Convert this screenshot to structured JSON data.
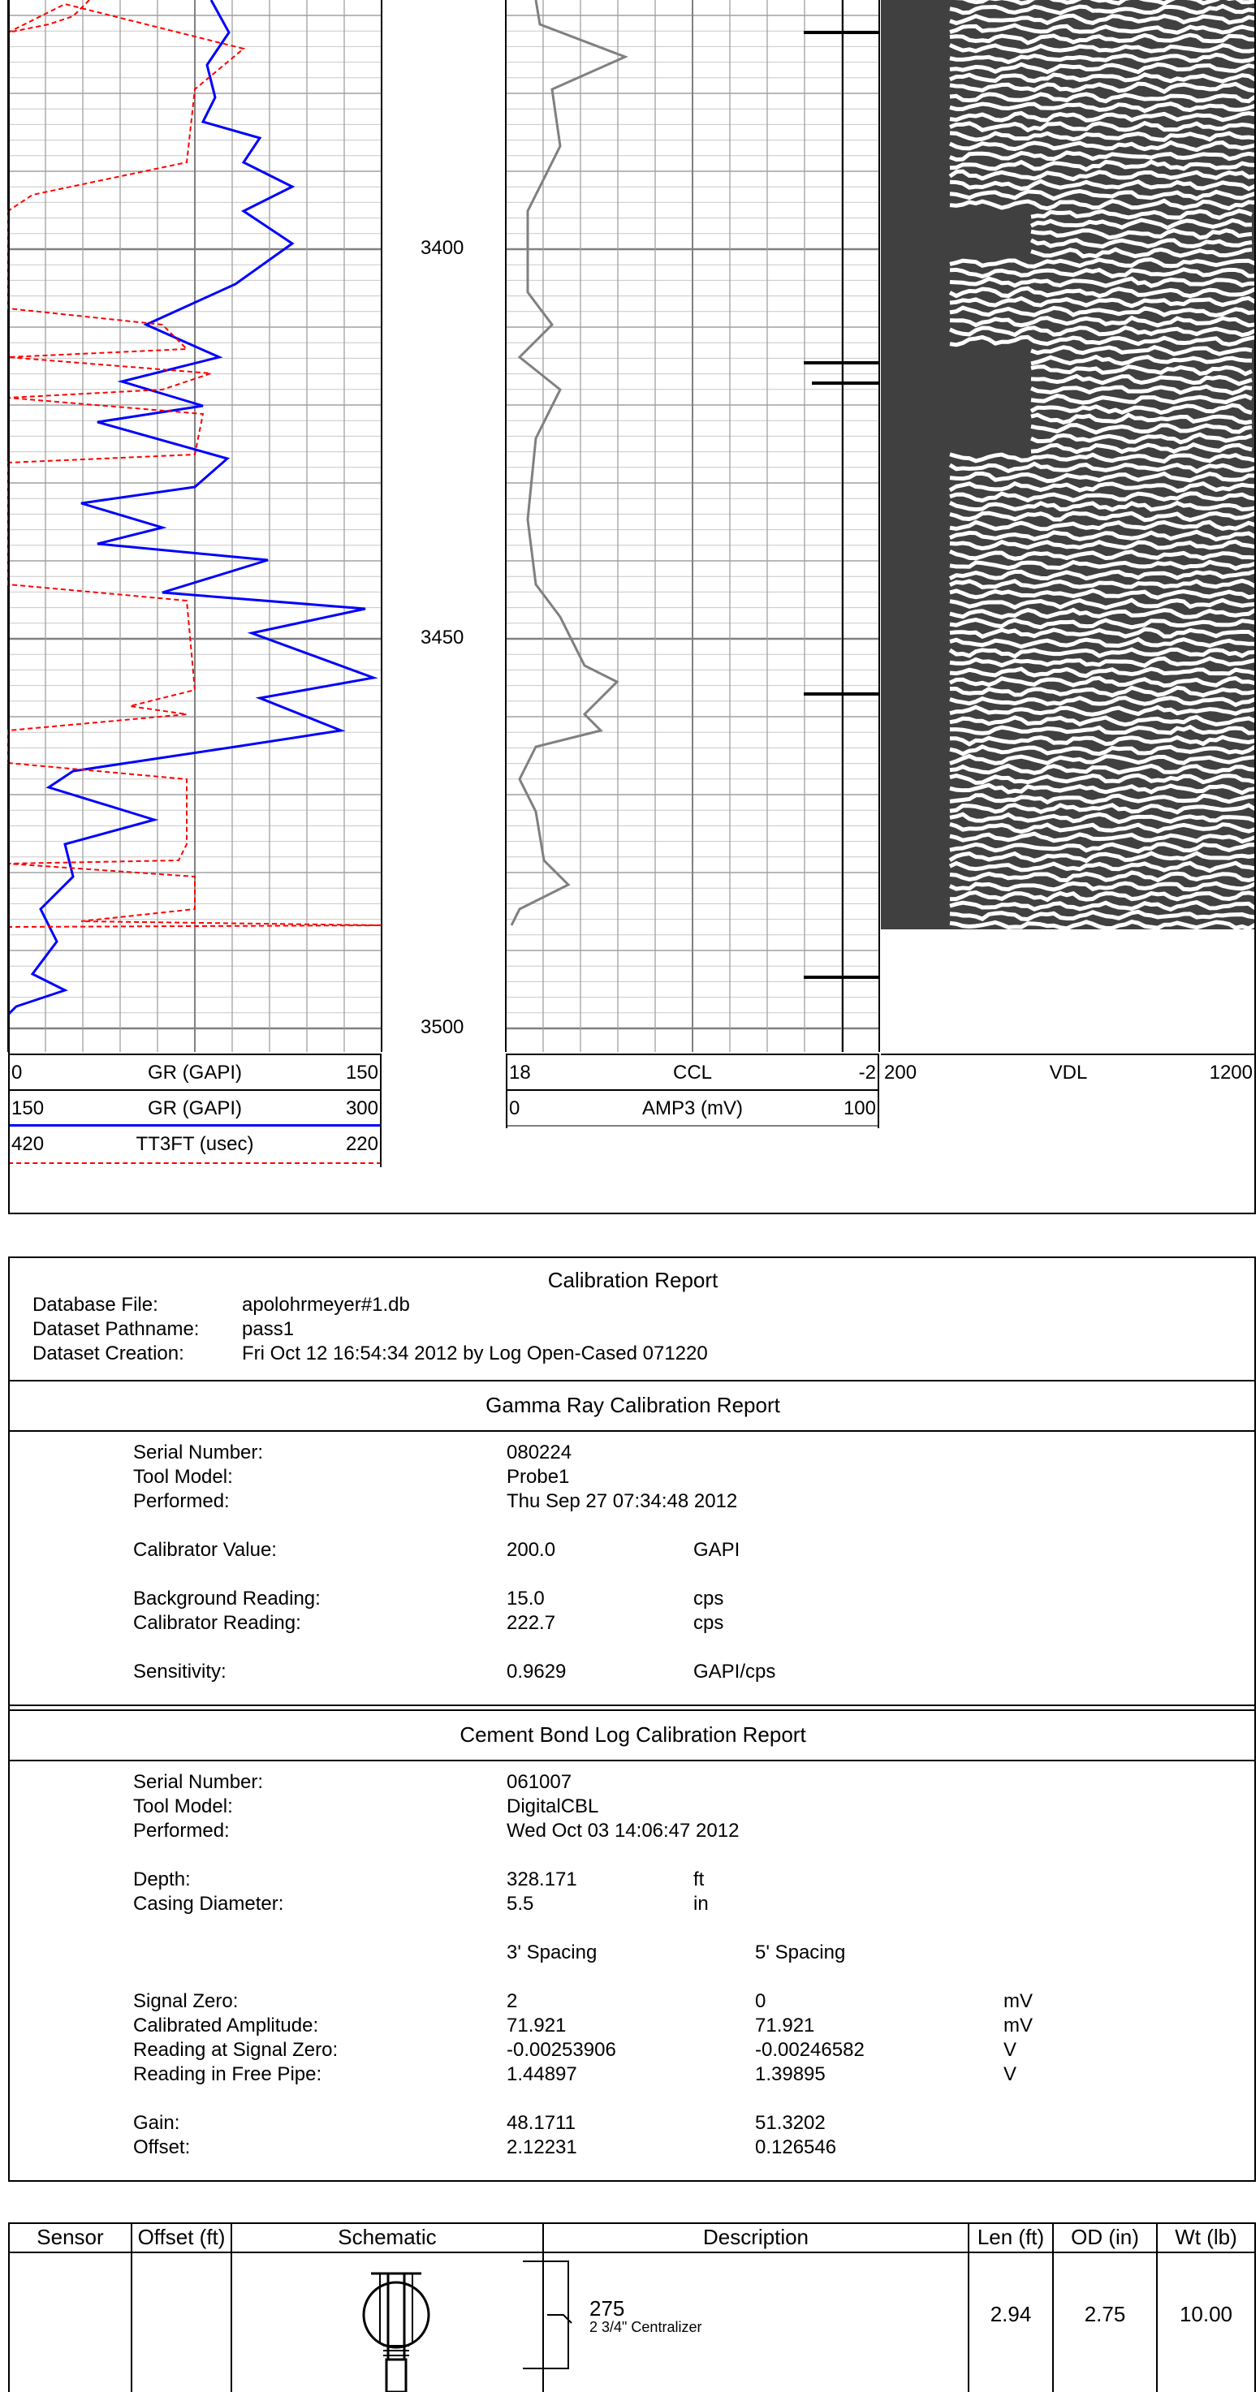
{
  "log": {
    "depth_labels": [
      "3400",
      "3450",
      "3500"
    ],
    "track1_scales": [
      {
        "left": "0",
        "name": "GR (GAPI)",
        "right": "150"
      },
      {
        "left": "150",
        "name": "GR (GAPI)",
        "right": "300"
      },
      {
        "left": "420",
        "name": "TT3FT (usec)",
        "right": "220"
      }
    ],
    "track2_scales": [
      {
        "left": "18",
        "name": "CCL",
        "right": "-2"
      },
      {
        "left": "0",
        "name": "AMP3 (mV)",
        "right": "100"
      }
    ],
    "track3_scale": {
      "left": "200",
      "name": "VDL",
      "right": "1200"
    },
    "colors": {
      "gr": "#0000ff",
      "tt": "#ff0000",
      "amp": "#808080",
      "vdl_bg": "#404040"
    }
  },
  "calibration": {
    "title": "Calibration Report",
    "database_label": "Database File:",
    "database_value": "apolohrmeyer#1.db",
    "pathname_label": "Dataset Pathname:",
    "pathname_value": "pass1",
    "creation_label": "Dataset Creation:",
    "creation_value": "Fri Oct 12 16:54:34 2012 by Log Open-Cased 071220"
  },
  "gamma": {
    "title": "Gamma Ray Calibration Report",
    "serial_label": "Serial Number:",
    "serial_value": "080224",
    "model_label": "Tool Model:",
    "model_value": "Probe1",
    "performed_label": "Performed:",
    "performed_value": "Thu Sep 27 07:34:48 2012",
    "calval_label": "Calibrator Value:",
    "calval_value": "200.0",
    "calval_unit": "GAPI",
    "bg_label": "Background Reading:",
    "bg_value": "15.0",
    "bg_unit": "cps",
    "calread_label": "Calibrator Reading:",
    "calread_value": "222.7",
    "calread_unit": "cps",
    "sens_label": "Sensitivity:",
    "sens_value": "0.9629",
    "sens_unit": "GAPI/cps"
  },
  "cbl": {
    "title": "Cement Bond Log Calibration Report",
    "serial_label": "Serial Number:",
    "serial_value": "061007",
    "model_label": "Tool Model:",
    "model_value": "DigitalCBL",
    "performed_label": "Performed:",
    "performed_value": "Wed Oct 03 14:06:47 2012",
    "depth_label": "Depth:",
    "depth_value": "328.171",
    "depth_unit": "ft",
    "casing_label": "Casing Diameter:",
    "casing_value": "5.5",
    "casing_unit": "in",
    "col3": "3' Spacing",
    "col5": "5' Spacing",
    "rows": [
      {
        "label": "Signal Zero:",
        "v3": "2",
        "v5": "0",
        "unit": "mV"
      },
      {
        "label": "Calibrated Amplitude:",
        "v3": "71.921",
        "v5": "71.921",
        "unit": "mV"
      },
      {
        "label": "Reading at Signal Zero:",
        "v3": "-0.00253906",
        "v5": "-0.00246582",
        "unit": "V"
      },
      {
        "label": "Reading in Free Pipe:",
        "v3": "1.44897",
        "v5": "1.39895",
        "unit": "V"
      }
    ],
    "gain_label": "Gain:",
    "gain3": "48.1711",
    "gain5": "51.3202",
    "offset_label": "Offset:",
    "offset3": "2.12231",
    "offset5": "0.126546"
  },
  "tool_table": {
    "headers": [
      "Sensor",
      "Offset (ft)",
      "Schematic",
      "Description",
      "Len (ft)",
      "OD (in)",
      "Wt (lb)"
    ],
    "row": {
      "sensor": "",
      "offset": "",
      "desc_code": "275",
      "desc_text": "2 3/4\" Centralizer",
      "len": "2.94",
      "od": "2.75",
      "wt": "10.00"
    }
  }
}
